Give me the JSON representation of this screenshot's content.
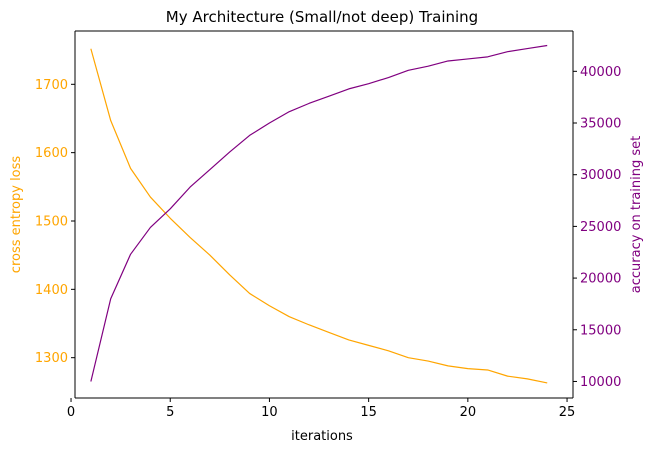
{
  "chart_data": {
    "type": "line",
    "title": "My Architecture (Small/not deep) Training",
    "xlabel": "iterations",
    "xlim": [
      0.2,
      25.3
    ],
    "xticks": [
      0,
      5,
      10,
      15,
      20,
      25
    ],
    "grid": false,
    "colors": {
      "left": "#ffa500",
      "right": "#800080",
      "axis": "#000000"
    },
    "x": [
      1,
      2,
      3,
      4,
      5,
      6,
      7,
      8,
      9,
      10,
      11,
      12,
      13,
      14,
      15,
      16,
      17,
      18,
      19,
      20,
      21,
      22,
      23,
      24
    ],
    "left_axis": {
      "label": "cross entropy loss",
      "ylim": [
        1241,
        1778
      ],
      "ticks": [
        1300,
        1400,
        1500,
        1600,
        1700
      ],
      "series": {
        "values": [
          1752,
          1647,
          1577,
          1535,
          1504,
          1476,
          1450,
          1421,
          1394,
          1376,
          1360,
          1348,
          1337,
          1326,
          1318,
          1310,
          1300,
          1295,
          1288,
          1284,
          1282,
          1273,
          1269,
          1263
        ]
      }
    },
    "right_axis": {
      "label": "accuracy on training set",
      "ylim": [
        8400,
        43900
      ],
      "ticks": [
        10000,
        15000,
        20000,
        25000,
        30000,
        35000,
        40000
      ],
      "series": {
        "values": [
          10000,
          18000,
          22300,
          24900,
          26700,
          28800,
          30500,
          32200,
          33800,
          35000,
          36100,
          36900,
          37600,
          38300,
          38800,
          39400,
          40100,
          40500,
          41000,
          41200,
          41400,
          41900,
          42200,
          42500
        ]
      }
    }
  }
}
